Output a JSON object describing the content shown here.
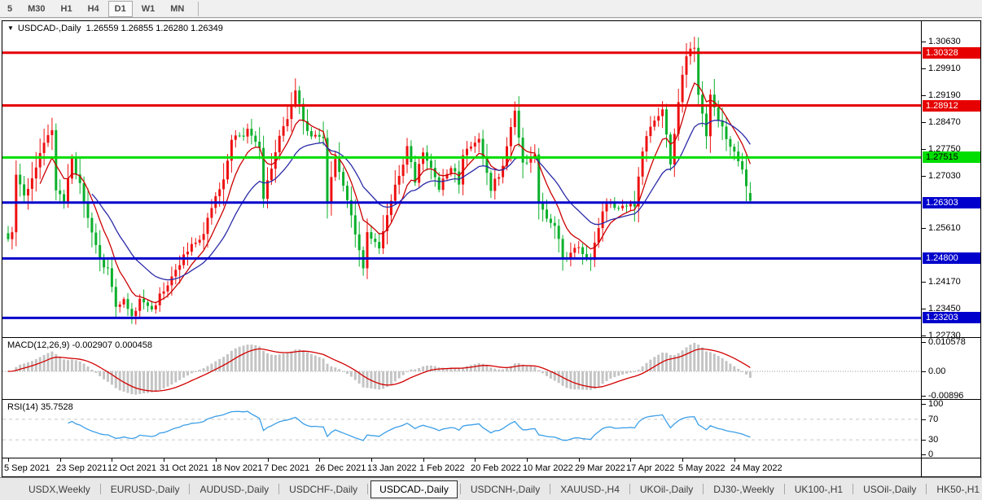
{
  "ui": {
    "toolbar": {
      "timeframes": [
        "5",
        "M30",
        "H1",
        "H4",
        "D1",
        "W1",
        "MN"
      ],
      "active": "D1"
    },
    "chart_header": {
      "dropdown_arrow": "▼",
      "symbol": "USDCAD-,Daily",
      "ohlc_text": "1.26559 1.26855 1.26280 1.26349"
    },
    "macd_label": "MACD(12,26,9) -0.002907 0.000458",
    "rsi_label": "RSI(14) 35.7528",
    "tabs": {
      "items": [
        "USDX,Weekly",
        "EURUSD-,Daily",
        "AUDUSD-,Daily",
        "USDCHF-,Daily",
        "USDCAD-,Daily",
        "USDCNH-,Daily",
        "XAUUSD-,H4",
        "UKOil-,Daily",
        "DJ30-,Weekly",
        "UK100-,H1",
        "USOil-,Daily",
        "HK50-,H1"
      ],
      "active_index": 4,
      "scroll_left": "◄",
      "scroll_right": "►"
    }
  },
  "colors": {
    "bull": "#ee1111",
    "bear": "#0cb02c",
    "ma_fast": "#cc0000",
    "ma_slow": "#2a2aa8",
    "macd_hist": "#c4c4c4",
    "macd_signal": "#d40000",
    "macd_zero": "#999999",
    "rsi_line": "#3d9fe8",
    "rsi_level": "#c8c8c8",
    "axis_text": "#000000"
  },
  "chart_data": {
    "type": "candlestick",
    "symbol": "USDCAD",
    "timeframe": "Daily",
    "last_bar": {
      "open": 1.26559,
      "high": 1.26855,
      "low": 1.2628,
      "close": 1.26349
    },
    "bar_count": 187,
    "price_axis_ticks": [
      "1.30630",
      "1.29910",
      "1.29190",
      "1.28470",
      "1.27750",
      "1.27030",
      "1.25610",
      "1.24170",
      "1.23450",
      "1.22730"
    ],
    "x_labels": [
      "5 Sep 2021",
      "23 Sep 2021",
      "12 Oct 2021",
      "31 Oct 2021",
      "18 Nov 2021",
      "7 Dec 2021",
      "26 Dec 2021",
      "13 Jan 2022",
      "1 Feb 2022",
      "20 Feb 2022",
      "10 Mar 2022",
      "29 Mar 2022",
      "17 Apr 2022",
      "5 May 2022",
      "24 May 2022"
    ],
    "x_label_bar_step": 13,
    "hlines": [
      {
        "price": 1.30328,
        "label": "1.30328",
        "color": "#e60000",
        "text_color": "#ffffff"
      },
      {
        "price": 1.28912,
        "label": "1.28912",
        "color": "#e60000",
        "text_color": "#ffffff"
      },
      {
        "price": 1.27515,
        "label": "1.27515",
        "color": "#00dd00",
        "text_color": "#000000"
      },
      {
        "price": 1.26303,
        "label": "1.26303",
        "color": "#0000cc",
        "text_color": "#ffffff"
      },
      {
        "price": 1.248,
        "label": "1.24800",
        "color": "#0000cc",
        "text_color": "#ffffff"
      },
      {
        "price": 1.23203,
        "label": "1.23203",
        "color": "#0000cc",
        "text_color": "#ffffff"
      }
    ],
    "close_anchors": [
      [
        0,
        1.253
      ],
      [
        1,
        1.2554
      ],
      [
        2,
        1.27
      ],
      [
        4,
        1.2658
      ],
      [
        6,
        1.2692
      ],
      [
        8,
        1.2765
      ],
      [
        10,
        1.2812
      ],
      [
        11,
        1.2828
      ],
      [
        12,
        1.2653
      ],
      [
        14,
        1.2638
      ],
      [
        16,
        1.2748
      ],
      [
        18,
        1.268
      ],
      [
        20,
        1.258
      ],
      [
        23,
        1.2473
      ],
      [
        25,
        1.2445
      ],
      [
        27,
        1.2347
      ],
      [
        29,
        1.2374
      ],
      [
        31,
        1.2317
      ],
      [
        33,
        1.2365
      ],
      [
        36,
        1.235
      ],
      [
        39,
        1.239
      ],
      [
        42,
        1.2454
      ],
      [
        45,
        1.2496
      ],
      [
        49,
        1.2551
      ],
      [
        52,
        1.2643
      ],
      [
        54,
        1.2692
      ],
      [
        56,
        1.2795
      ],
      [
        60,
        1.2824
      ],
      [
        63,
        1.277
      ],
      [
        64,
        1.2642
      ],
      [
        68,
        1.2815
      ],
      [
        71,
        1.2888
      ],
      [
        72,
        1.2935
      ],
      [
        75,
        1.2818
      ],
      [
        79,
        1.2795
      ],
      [
        80,
        1.2637
      ],
      [
        82,
        1.2751
      ],
      [
        85,
        1.2643
      ],
      [
        89,
        1.2453
      ],
      [
        90,
        1.2553
      ],
      [
        93,
        1.2503
      ],
      [
        96,
        1.2635
      ],
      [
        100,
        1.2773
      ],
      [
        102,
        1.269
      ],
      [
        104,
        1.2763
      ],
      [
        108,
        1.2673
      ],
      [
        111,
        1.273
      ],
      [
        113,
        1.2683
      ],
      [
        114,
        1.2755
      ],
      [
        118,
        1.28
      ],
      [
        121,
        1.2666
      ],
      [
        124,
        1.2726
      ],
      [
        127,
        1.288
      ],
      [
        129,
        1.2735
      ],
      [
        132,
        1.2768
      ],
      [
        133,
        1.262
      ],
      [
        137,
        1.257
      ],
      [
        139,
        1.2483
      ],
      [
        143,
        1.2505
      ],
      [
        146,
        1.2485
      ],
      [
        150,
        1.2635
      ],
      [
        153,
        1.261
      ],
      [
        157,
        1.262
      ],
      [
        158,
        1.271
      ],
      [
        160,
        1.281
      ],
      [
        164,
        1.288
      ],
      [
        166,
        1.274
      ],
      [
        168,
        1.29
      ],
      [
        170,
        1.303
      ],
      [
        172,
        1.304
      ],
      [
        173,
        1.291
      ],
      [
        175,
        1.281
      ],
      [
        176,
        1.293
      ],
      [
        178,
        1.285
      ],
      [
        181,
        1.279
      ],
      [
        184,
        1.271
      ],
      [
        186,
        1.2635
      ]
    ],
    "overrides": {
      "72": {
        "h": 1.2964
      },
      "172": {
        "h": 1.3076
      },
      "186": {
        "o": 1.26559,
        "h": 1.26855,
        "l": 1.2628,
        "c": 1.26349
      }
    },
    "moving_averages": [
      {
        "period": 8,
        "color_key": "ma_fast"
      },
      {
        "period": 21,
        "color_key": "ma_slow"
      }
    ],
    "macd": {
      "params": [
        12,
        26,
        9
      ],
      "main_value": -0.002907,
      "signal_value": 0.000458,
      "axis": [
        {
          "v": 0.010578,
          "label": "0.010578"
        },
        {
          "v": 0,
          "label": "0.00"
        },
        {
          "v": -0.00896,
          "label": "-0.00896"
        }
      ]
    },
    "rsi": {
      "period": 14,
      "value": 35.7528,
      "axis": [
        {
          "v": 100,
          "label": "100"
        },
        {
          "v": 70,
          "label": "70"
        },
        {
          "v": 30,
          "label": "30"
        },
        {
          "v": 0,
          "label": "0"
        }
      ],
      "levels": [
        70,
        30
      ]
    }
  }
}
